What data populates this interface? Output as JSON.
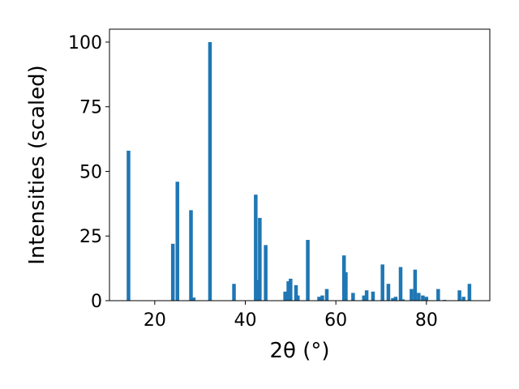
{
  "chart_data": {
    "type": "bar",
    "xlabel": "2θ (°)",
    "ylabel": "Intensities (scaled)",
    "xlim": [
      10,
      94
    ],
    "ylim": [
      0,
      105
    ],
    "xticks": [
      20,
      40,
      60,
      80
    ],
    "yticks": [
      0,
      25,
      50,
      75,
      100
    ],
    "grid": false,
    "bar_color": "#1f77b4",
    "series": [
      {
        "x": [
          14.2,
          24.0,
          25.0,
          28.0,
          28.6,
          32.2,
          37.5,
          42.3,
          43.0,
          43.2,
          44.5,
          48.8,
          49.5,
          50.0,
          51.2,
          51.6,
          53.8,
          56.3,
          57.0,
          58.0,
          61.8,
          62.2,
          63.8,
          66.2,
          66.8,
          68.2,
          70.3,
          71.6,
          72.6,
          73.2,
          74.3,
          74.8,
          76.7,
          77.5,
          78.3,
          79.2,
          80.0,
          82.6,
          84.0,
          87.3,
          88.2,
          89.5
        ],
        "y": [
          58,
          22,
          46,
          35,
          1.2,
          100,
          6.5,
          41,
          8,
          32,
          21.5,
          3.5,
          7.5,
          8.5,
          6,
          2,
          23.5,
          1.5,
          2,
          4.5,
          17.5,
          11,
          3,
          2,
          4,
          3.5,
          14,
          6.5,
          1,
          1.5,
          13,
          0.5,
          4.5,
          12,
          3,
          2,
          1.5,
          4.5,
          0.3,
          4,
          1.5,
          6.5
        ]
      }
    ]
  }
}
